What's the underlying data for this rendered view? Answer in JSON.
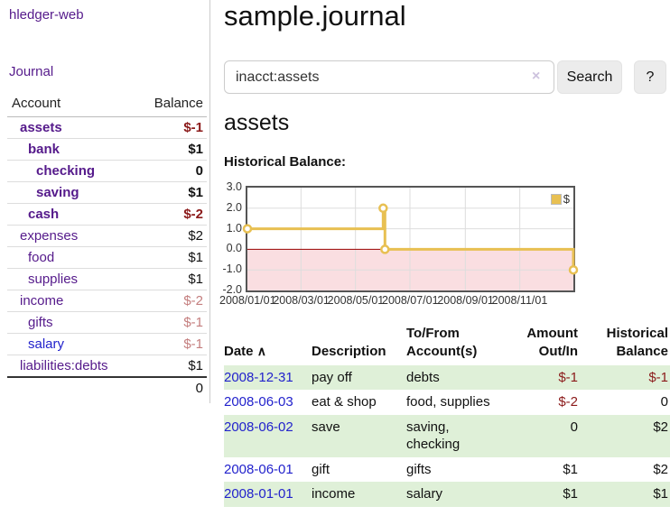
{
  "colors": {
    "link_purple": "#551a8b",
    "link_blue": "#2222cc",
    "negative_strong": "#8b1a1a",
    "negative_muted": "#c47e7e",
    "row_green": "#dff0d8",
    "chart_line": "#e8c052",
    "negative_region": "#fadee1",
    "zero_line": "#990000"
  },
  "sidebar": {
    "app_title": "hledger-web",
    "journal_label": "Journal",
    "accounts_table": {
      "headers": {
        "account": "Account",
        "balance": "Balance"
      },
      "rows": [
        {
          "name": "assets",
          "depth": 1,
          "bold": true,
          "balance": "$-1",
          "balance_style": "neg-strong",
          "link_style": "purple"
        },
        {
          "name": "bank",
          "depth": 2,
          "bold": true,
          "balance": "$1",
          "balance_style": "",
          "link_style": "purple"
        },
        {
          "name": "checking",
          "depth": 3,
          "bold": true,
          "balance": "0",
          "balance_style": "",
          "link_style": "purple"
        },
        {
          "name": "saving",
          "depth": 3,
          "bold": true,
          "balance": "$1",
          "balance_style": "",
          "link_style": "purple"
        },
        {
          "name": "cash",
          "depth": 2,
          "bold": true,
          "balance": "$-2",
          "balance_style": "neg-strong",
          "link_style": "purple"
        },
        {
          "name": "expenses",
          "depth": 1,
          "bold": false,
          "balance": "$2",
          "balance_style": "",
          "link_style": "purple"
        },
        {
          "name": "food",
          "depth": 2,
          "bold": false,
          "balance": "$1",
          "balance_style": "",
          "link_style": "purple"
        },
        {
          "name": "supplies",
          "depth": 2,
          "bold": false,
          "balance": "$1",
          "balance_style": "",
          "link_style": "purple"
        },
        {
          "name": "income",
          "depth": 1,
          "bold": false,
          "balance": "$-2",
          "balance_style": "neg-muted",
          "link_style": "purple"
        },
        {
          "name": "gifts",
          "depth": 2,
          "bold": false,
          "balance": "$-1",
          "balance_style": "neg-muted",
          "link_style": "purple"
        },
        {
          "name": "salary",
          "depth": 2,
          "bold": false,
          "balance": "$-1",
          "balance_style": "neg-muted",
          "link_style": "blue"
        },
        {
          "name": "liabilities:debts",
          "depth": 1,
          "bold": false,
          "balance": "$1",
          "balance_style": "",
          "link_style": "purple"
        }
      ],
      "total": "0"
    }
  },
  "main": {
    "title": "sample.journal",
    "search": {
      "value": "inacct:assets",
      "clear_icon": "×",
      "button_label": "Search",
      "help_label": "?"
    },
    "section_title": "assets",
    "chart_label": "Historical Balance:",
    "register_table": {
      "headers": {
        "date": "Date",
        "sort_icon": "∧",
        "description": "Description",
        "accounts": "To/From Account(s)",
        "amount": "Amount Out/In",
        "balance": "Historical Balance"
      },
      "rows": [
        {
          "date": "2008-12-31",
          "description": "pay off",
          "accounts": "debts",
          "amount": "$-1",
          "amount_neg": true,
          "balance": "$-1",
          "balance_neg": true
        },
        {
          "date": "2008-06-03",
          "description": "eat & shop",
          "accounts": "food, supplies",
          "amount": "$-2",
          "amount_neg": true,
          "balance": "0",
          "balance_neg": false
        },
        {
          "date": "2008-06-02",
          "description": "save",
          "accounts": "saving, checking",
          "amount": "0",
          "amount_neg": false,
          "balance": "$2",
          "balance_neg": false
        },
        {
          "date": "2008-06-01",
          "description": "gift",
          "accounts": "gifts",
          "amount": "$1",
          "amount_neg": false,
          "balance": "$2",
          "balance_neg": false
        },
        {
          "date": "2008-01-01",
          "description": "income",
          "accounts": "salary",
          "amount": "$1",
          "amount_neg": false,
          "balance": "$1",
          "balance_neg": false
        }
      ]
    }
  },
  "chart_data": {
    "type": "line",
    "title": "Historical Balance",
    "step": true,
    "series": [
      {
        "name": "$",
        "points": [
          {
            "date": "2008-01-01",
            "value": 1
          },
          {
            "date": "2008-06-01",
            "value": 2
          },
          {
            "date": "2008-06-03",
            "value": 0
          },
          {
            "date": "2008-12-31",
            "value": -1
          }
        ]
      }
    ],
    "xlim_dates": [
      "2008-01-01",
      "2008-12-31"
    ],
    "ylim": [
      -2,
      3
    ],
    "y_ticks": [
      {
        "label": "3.0",
        "value": 3
      },
      {
        "label": "2.0",
        "value": 2
      },
      {
        "label": "1.0",
        "value": 1
      },
      {
        "label": "0.0",
        "value": 0
      },
      {
        "label": "-1.0",
        "value": -1
      },
      {
        "label": "-2.0",
        "value": -2
      }
    ],
    "x_ticks": [
      {
        "label": "2008/01/01",
        "date": "2008-01-01"
      },
      {
        "label": "2008/03/01",
        "date": "2008-03-01"
      },
      {
        "label": "2008/05/01",
        "date": "2008-05-01"
      },
      {
        "label": "2008/07/01",
        "date": "2008-07-01"
      },
      {
        "label": "2008/09/01",
        "date": "2008-09-01"
      },
      {
        "label": "2008/11/01",
        "date": "2008-11-01"
      }
    ],
    "legend": {
      "label": "$",
      "position": "top-right"
    },
    "grid": true
  }
}
